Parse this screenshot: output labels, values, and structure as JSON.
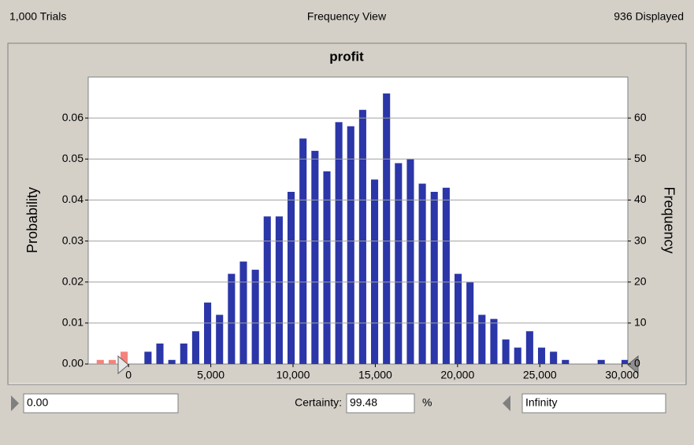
{
  "header": {
    "left": "1,000 Trials",
    "center": "Frequency View",
    "right": "936 Displayed"
  },
  "chart_data": {
    "type": "histogram",
    "title": "profit",
    "ylabel": "Probability",
    "y2label": "Frequency",
    "bins": [
      -2080,
      -1355,
      -630,
      95,
      820,
      1545,
      2270,
      2995,
      3720,
      4445,
      5170,
      5895,
      6620,
      7345,
      8070,
      8795,
      9520,
      10245,
      10970,
      11695,
      12420,
      13145,
      13870,
      14595,
      15320,
      16045,
      16770,
      17495,
      18220,
      18945,
      19670,
      20395,
      21120,
      21845,
      22570,
      23295,
      24020,
      24745,
      25470,
      26195,
      26920,
      27645,
      28370,
      29095,
      29820,
      30545
    ],
    "values": [
      1,
      1,
      3,
      0,
      3,
      5,
      1,
      5,
      8,
      15,
      12,
      22,
      25,
      23,
      36,
      36,
      42,
      55,
      52,
      47,
      59,
      58,
      62,
      45,
      66,
      49,
      50,
      44,
      42,
      43,
      22,
      20,
      12,
      11,
      6,
      4,
      8,
      4,
      3,
      1,
      0,
      0,
      1,
      0,
      1
    ],
    "axis": "y2",
    "colors": [
      "#f4837b",
      "#f4837b",
      "#f4837b",
      "#f4837b",
      "#2b36a8",
      "#2b36a8",
      "#2b36a8",
      "#2b36a8",
      "#2b36a8",
      "#2b36a8",
      "#2b36a8",
      "#2b36a8",
      "#2b36a8",
      "#2b36a8",
      "#2b36a8",
      "#2b36a8",
      "#2b36a8",
      "#2b36a8",
      "#2b36a8",
      "#2b36a8",
      "#2b36a8",
      "#2b36a8",
      "#2b36a8",
      "#2b36a8",
      "#2b36a8",
      "#2b36a8",
      "#2b36a8",
      "#2b36a8",
      "#2b36a8",
      "#2b36a8",
      "#2b36a8",
      "#2b36a8",
      "#2b36a8",
      "#2b36a8",
      "#2b36a8",
      "#2b36a8",
      "#2b36a8",
      "#2b36a8",
      "#2b36a8",
      "#2b36a8",
      "#2b36a8",
      "#2b36a8",
      "#2b36a8",
      "#2b36a8",
      "#2b36a8"
    ],
    "xlim": [
      -2450,
      30350
    ],
    "xticks": [
      0,
      {
        "value": 5000,
        "label": "5,000"
      },
      {
        "value": 10000,
        "label": "10,000"
      },
      {
        "value": 15000,
        "label": "15,000"
      },
      {
        "value": 20000,
        "label": "20,000"
      },
      {
        "value": 25000,
        "label": "25,000"
      },
      {
        "value": 30000,
        "label": "30,000"
      }
    ],
    "ylim": [
      0,
      0.07
    ],
    "yticks": [
      {
        "value": 0,
        "label": "0.00"
      },
      0.01,
      0.02,
      0.03,
      0.04,
      0.05,
      0.06
    ],
    "y2lim": [
      0,
      70
    ],
    "y2ticks": [
      0,
      10,
      20,
      30,
      40,
      50,
      60
    ],
    "grid": true
  },
  "footer": {
    "lower": "0.00",
    "certainty_label": "Certainty:",
    "certainty": "99.48",
    "unit": "%",
    "upper": "Infinity"
  }
}
